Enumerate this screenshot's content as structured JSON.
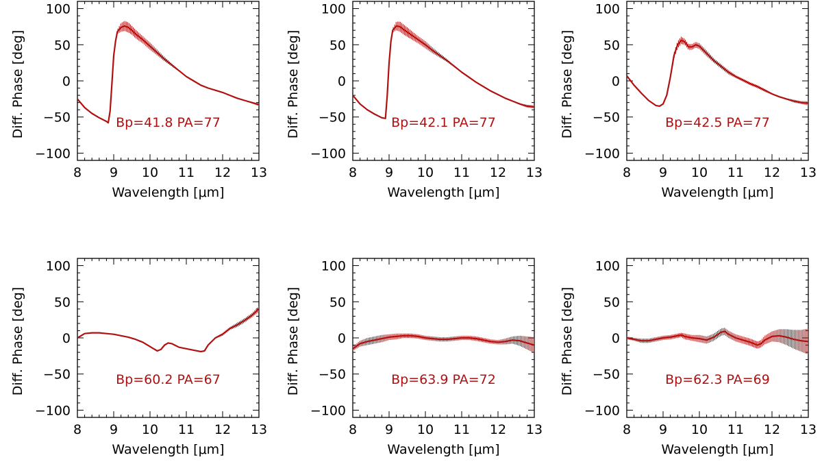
{
  "chart_data": [
    {
      "type": "line",
      "xlabel": "Wavelength [μm]",
      "ylabel": "Diff. Phase [deg]",
      "xlim": [
        8,
        13
      ],
      "ylim": [
        -110,
        110
      ],
      "xticks": [
        "8",
        "9",
        "10",
        "11",
        "12",
        "13"
      ],
      "yticks": [
        "−100",
        "−50",
        "0",
        "50",
        "100"
      ],
      "annotation": "Bp=41.8  PA=77",
      "color": "#b01010",
      "series": [
        {
          "x": [
            8.0,
            8.2,
            8.4,
            8.6,
            8.8,
            8.85,
            8.9,
            8.95,
            9.0,
            9.05,
            9.1,
            9.2,
            9.3,
            9.4,
            9.5,
            9.6,
            9.8,
            10.0,
            10.2,
            10.4,
            10.6,
            10.8,
            11.0,
            11.2,
            11.4,
            11.6,
            11.8,
            12.0,
            12.2,
            12.4,
            12.6,
            12.8,
            13.0
          ],
          "y": [
            -25,
            -37,
            -45,
            -51,
            -56,
            -58,
            -42,
            -5,
            35,
            55,
            68,
            74,
            76,
            74,
            70,
            65,
            57,
            48,
            39,
            30,
            22,
            14,
            6,
            0,
            -6,
            -10,
            -13,
            -16,
            -20,
            -24,
            -27,
            -30,
            -33
          ],
          "err": [
            0,
            0,
            0,
            0,
            0,
            0,
            0,
            0,
            0,
            0,
            3,
            6,
            7,
            7,
            6,
            6,
            5,
            5,
            4,
            3,
            2,
            1,
            0,
            0,
            0,
            0,
            0,
            0,
            0,
            0,
            0,
            1,
            2
          ]
        }
      ]
    },
    {
      "type": "line",
      "xlabel": "Wavelength [μm]",
      "ylabel": "Diff. Phase [deg]",
      "xlim": [
        8,
        13
      ],
      "ylim": [
        -110,
        110
      ],
      "xticks": [
        "8",
        "9",
        "10",
        "11",
        "12",
        "13"
      ],
      "yticks": [
        "−100",
        "−50",
        "0",
        "50",
        "100"
      ],
      "annotation": "Bp=42.1  PA=77",
      "color": "#b01010",
      "series": [
        {
          "x": [
            8.0,
            8.2,
            8.4,
            8.6,
            8.8,
            8.9,
            8.95,
            9.0,
            9.05,
            9.1,
            9.2,
            9.3,
            9.4,
            9.6,
            9.8,
            10.0,
            10.2,
            10.4,
            10.6,
            10.8,
            11.0,
            11.2,
            11.4,
            11.6,
            11.8,
            12.0,
            12.2,
            12.4,
            12.6,
            12.8,
            13.0
          ],
          "y": [
            -20,
            -32,
            -40,
            -46,
            -51,
            -52,
            -20,
            25,
            55,
            70,
            76,
            75,
            71,
            64,
            57,
            50,
            42,
            35,
            28,
            20,
            12,
            5,
            -2,
            -8,
            -14,
            -19,
            -24,
            -28,
            -32,
            -35,
            -36
          ],
          "err": [
            0,
            0,
            0,
            0,
            0,
            0,
            0,
            0,
            0,
            3,
            6,
            7,
            7,
            6,
            5,
            5,
            4,
            3,
            2,
            1,
            0,
            0,
            0,
            0,
            0,
            0,
            0,
            0,
            1,
            2,
            2
          ]
        }
      ]
    },
    {
      "type": "line",
      "xlabel": "Wavelength [μm]",
      "ylabel": "Diff. Phase [deg]",
      "xlim": [
        8,
        13
      ],
      "ylim": [
        -110,
        110
      ],
      "xticks": [
        "8",
        "9",
        "10",
        "11",
        "12",
        "13"
      ],
      "yticks": [
        "−100",
        "−50",
        "0",
        "50",
        "100"
      ],
      "annotation": "Bp=42.5  PA=77",
      "color": "#b01010",
      "series": [
        {
          "x": [
            8.0,
            8.2,
            8.4,
            8.6,
            8.8,
            8.9,
            9.0,
            9.1,
            9.2,
            9.3,
            9.4,
            9.5,
            9.6,
            9.7,
            9.8,
            9.9,
            10.0,
            10.2,
            10.4,
            10.6,
            10.8,
            11.0,
            11.2,
            11.4,
            11.6,
            11.8,
            12.0,
            12.2,
            12.4,
            12.6,
            12.8,
            13.0
          ],
          "y": [
            7,
            -6,
            -17,
            -27,
            -34,
            -35,
            -32,
            -20,
            5,
            35,
            50,
            56,
            54,
            47,
            47,
            50,
            48,
            38,
            28,
            20,
            12,
            6,
            1,
            -4,
            -8,
            -13,
            -18,
            -22,
            -25,
            -28,
            -30,
            -31
          ],
          "err": [
            0,
            0,
            0,
            0,
            0,
            0,
            0,
            1,
            2,
            4,
            5,
            5,
            4,
            4,
            4,
            4,
            4,
            4,
            3,
            3,
            3,
            2,
            2,
            2,
            2,
            2,
            1,
            1,
            1,
            2,
            2,
            3
          ]
        }
      ]
    },
    {
      "type": "line",
      "xlabel": "Wavelength [μm]",
      "ylabel": "Diff. Phase [deg]",
      "xlim": [
        8,
        13
      ],
      "ylim": [
        -110,
        110
      ],
      "xticks": [
        "8",
        "9",
        "10",
        "11",
        "12",
        "13"
      ],
      "yticks": [
        "−100",
        "−50",
        "0",
        "50",
        "100"
      ],
      "annotation": "Bp=60.2  PA=67",
      "color": "#b01010",
      "series": [
        {
          "x": [
            8.0,
            8.2,
            8.4,
            8.6,
            8.8,
            9.0,
            9.2,
            9.4,
            9.6,
            9.8,
            10.0,
            10.2,
            10.3,
            10.4,
            10.5,
            10.6,
            10.8,
            11.0,
            11.2,
            11.4,
            11.5,
            11.6,
            11.8,
            12.0,
            12.2,
            12.4,
            12.6,
            12.8,
            13.0
          ],
          "y": [
            0,
            6,
            7,
            7,
            6,
            5,
            3,
            1,
            -2,
            -6,
            -12,
            -18,
            -16,
            -10,
            -7,
            -8,
            -13,
            -15,
            -17,
            -19,
            -18,
            -10,
            0,
            5,
            13,
            18,
            24,
            31,
            40
          ],
          "err": [
            0,
            0,
            0,
            0,
            0,
            0,
            0,
            0,
            0,
            0,
            0,
            0,
            0,
            0,
            0,
            0,
            0,
            0,
            0,
            0,
            0,
            1,
            1,
            2,
            2,
            3,
            3,
            3,
            4
          ]
        }
      ]
    },
    {
      "type": "line",
      "xlabel": "Wavelength [μm]",
      "ylabel": "Diff. Phase [deg]",
      "xlim": [
        8,
        13
      ],
      "ylim": [
        -110,
        110
      ],
      "xticks": [
        "8",
        "9",
        "10",
        "11",
        "12",
        "13"
      ],
      "yticks": [
        "−100",
        "−50",
        "0",
        "50",
        "100"
      ],
      "annotation": "Bp=63.9  PA=72",
      "color": "#b01010",
      "series": [
        {
          "x": [
            8.0,
            8.2,
            8.4,
            8.6,
            8.8,
            9.0,
            9.2,
            9.4,
            9.6,
            9.8,
            10.0,
            10.2,
            10.4,
            10.6,
            10.8,
            11.0,
            11.2,
            11.4,
            11.6,
            11.8,
            12.0,
            12.2,
            12.4,
            12.6,
            12.8,
            13.0
          ],
          "y": [
            -15,
            -8,
            -5,
            -3,
            -1,
            1,
            2,
            3,
            3,
            2,
            0,
            -1,
            -2,
            -2,
            -1,
            0,
            0,
            -1,
            -3,
            -5,
            -6,
            -5,
            -3,
            -4,
            -7,
            -10
          ],
          "err": [
            3,
            4,
            5,
            5,
            5,
            4,
            4,
            3,
            3,
            3,
            3,
            3,
            3,
            3,
            3,
            3,
            3,
            3,
            3,
            3,
            3,
            4,
            5,
            7,
            9,
            11
          ]
        }
      ]
    },
    {
      "type": "line",
      "xlabel": "Wavelength [μm]",
      "ylabel": "Diff. Phase [deg]",
      "xlim": [
        8,
        13
      ],
      "ylim": [
        -110,
        110
      ],
      "xticks": [
        "8",
        "9",
        "10",
        "11",
        "12",
        "13"
      ],
      "yticks": [
        "−100",
        "−50",
        "0",
        "50",
        "100"
      ],
      "annotation": "Bp=62.3  PA=69",
      "color": "#b01010",
      "series": [
        {
          "x": [
            8.0,
            8.2,
            8.4,
            8.6,
            8.8,
            9.0,
            9.2,
            9.4,
            9.5,
            9.6,
            9.8,
            10.0,
            10.2,
            10.4,
            10.6,
            10.7,
            10.8,
            11.0,
            11.2,
            11.4,
            11.6,
            11.7,
            11.8,
            12.0,
            12.2,
            12.4,
            12.6,
            12.8,
            13.0
          ],
          "y": [
            0,
            -2,
            -4,
            -4,
            -2,
            0,
            1,
            3,
            4,
            2,
            0,
            -1,
            -3,
            1,
            8,
            9,
            5,
            0,
            -3,
            -6,
            -10,
            -8,
            -3,
            2,
            3,
            1,
            -2,
            -4,
            -5
          ],
          "err": [
            2,
            2,
            3,
            3,
            3,
            3,
            3,
            3,
            3,
            4,
            4,
            5,
            5,
            5,
            5,
            5,
            5,
            5,
            5,
            5,
            5,
            5,
            6,
            7,
            9,
            11,
            13,
            15,
            18
          ]
        }
      ]
    }
  ]
}
